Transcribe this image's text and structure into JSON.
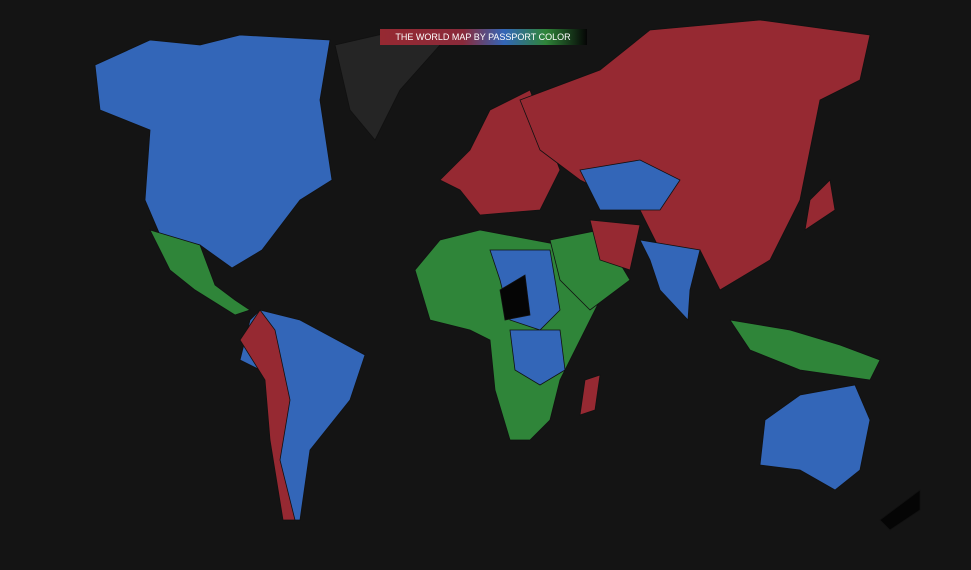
{
  "title": "THE WORLD MAP BY PASSPORT COLOR"
}
